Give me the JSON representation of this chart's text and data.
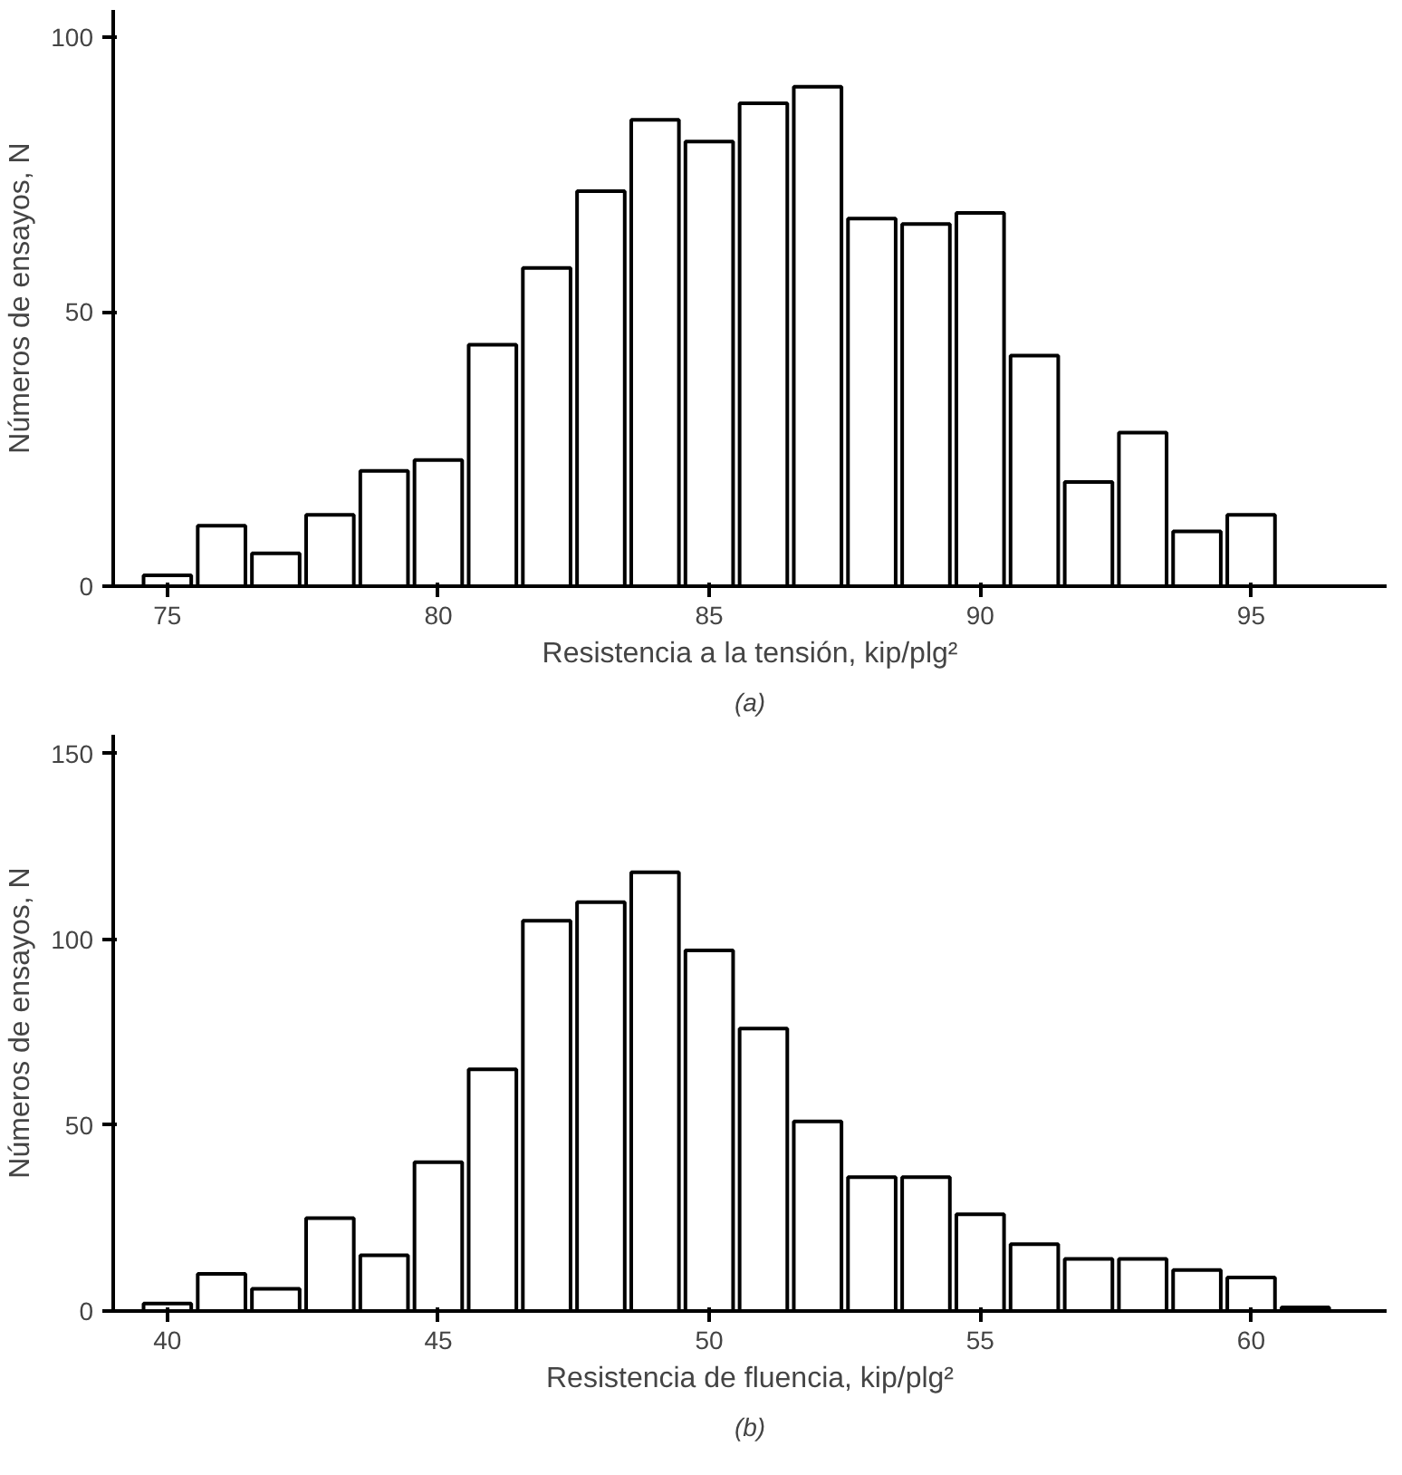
{
  "chart_data": [
    {
      "type": "histogram",
      "bins": [
        74.5,
        75.5,
        76.5,
        77.5,
        78.5,
        79.5,
        80.5,
        81.5,
        82.5,
        83.5,
        84.5,
        85.5,
        86.5,
        87.5,
        88.5,
        89.5,
        90.5,
        91.5,
        92.5,
        93.5,
        94.5,
        95.5
      ],
      "values": [
        2,
        11,
        6,
        13,
        21,
        23,
        44,
        58,
        72,
        85,
        81,
        88,
        91,
        67,
        66,
        68,
        42,
        19,
        28,
        10,
        13
      ],
      "color": "#ffffff",
      "xlim": [
        74,
        97.5
      ],
      "ylim": [
        0,
        105
      ],
      "xticks": [
        75,
        80,
        85,
        90,
        95
      ],
      "yticks": [
        0,
        50,
        100
      ],
      "xlabel": "Resistencia a la tensión, kip/plg²",
      "ylabel": "Números de ensayos, N",
      "annotations": [
        "(a)"
      ],
      "grid": false
    },
    {
      "type": "histogram",
      "bins": [
        39.5,
        40.5,
        41.5,
        42.5,
        43.5,
        44.5,
        45.5,
        46.5,
        47.5,
        48.5,
        49.5,
        50.5,
        51.5,
        52.5,
        53.5,
        54.5,
        55.5,
        56.5,
        57.5,
        58.5,
        59.5,
        60.5,
        61.5
      ],
      "values": [
        2,
        10,
        6,
        25,
        15,
        40,
        65,
        105,
        110,
        118,
        97,
        76,
        51,
        36,
        36,
        26,
        18,
        14,
        14,
        11,
        9,
        1
      ],
      "color": "#ffffff",
      "xlim": [
        39,
        62.5
      ],
      "ylim": [
        0,
        155
      ],
      "xticks": [
        40,
        45,
        50,
        55,
        60
      ],
      "yticks": [
        0,
        50,
        100,
        150
      ],
      "xlabel": "Resistencia de fluencia, kip/plg²",
      "ylabel": "Números de ensayos, N",
      "annotations": [
        "(b)"
      ],
      "grid": false
    }
  ]
}
